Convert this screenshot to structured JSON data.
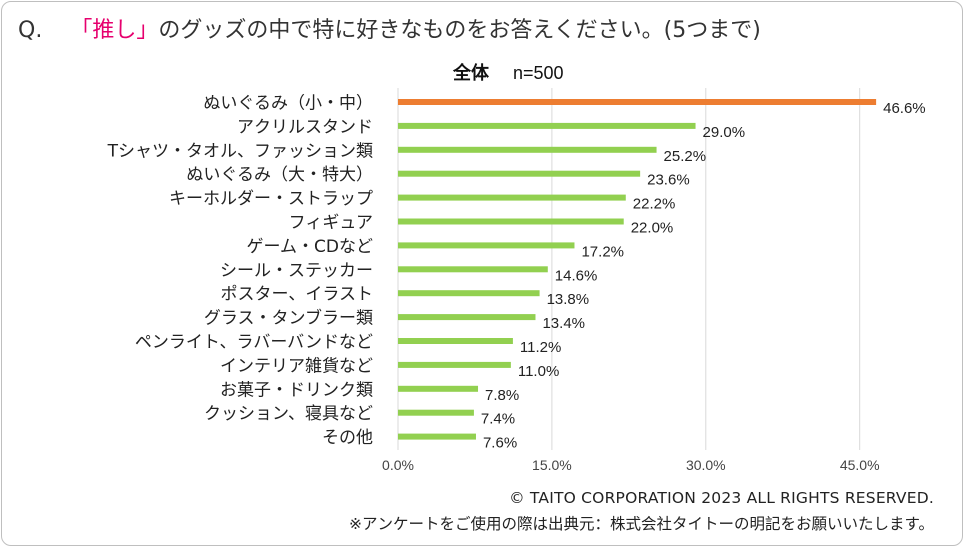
{
  "question": {
    "prefix": "Q.",
    "highlight": "「推し」",
    "text": "のグッズの中で特に好きなものをお答えください。(5つまで)"
  },
  "chart_data": {
    "type": "bar",
    "orientation": "horizontal",
    "title": "全体",
    "subtitle": "n=500",
    "categories": [
      "ぬいぐるみ（小・中）",
      "アクリルスタンド",
      "Tシャツ・タオル、ファッション類",
      "ぬいぐるみ（大・特大）",
      "キーホルダー・ストラップ",
      "フィギュア",
      "ゲーム・CDなど",
      "シール・ステッカー",
      "ポスター、イラスト",
      "グラス・タンブラー類",
      "ペンライト、ラバーバンドなど",
      "インテリア雑貨など",
      "お菓子・ドリンク類",
      "クッション、寝具など",
      "その他"
    ],
    "values": [
      46.6,
      29.0,
      25.2,
      23.6,
      22.2,
      22.0,
      17.2,
      14.6,
      13.8,
      13.4,
      11.2,
      11.0,
      7.8,
      7.4,
      7.6
    ],
    "value_labels": [
      "46.6%",
      "29.0%",
      "25.2%",
      "23.6%",
      "22.2%",
      "22.0%",
      "17.2%",
      "14.6%",
      "13.8%",
      "13.4%",
      "11.2%",
      "11.0%",
      "7.8%",
      "7.4%",
      "7.6%"
    ],
    "highlight_index": 0,
    "colors": {
      "highlight": "#ed7d31",
      "default": "#92d050",
      "grid": "#d9d9d9"
    },
    "xlim": [
      0,
      50
    ],
    "xticks": [
      0,
      15,
      30,
      45
    ],
    "xtick_labels": [
      "0.0%",
      "15.0%",
      "30.0%",
      "45.0%"
    ],
    "grid": true
  },
  "footer": {
    "copyright": "© TAITO CORPORATION 2023 ALL RIGHTS RESERVED.",
    "notice": "※アンケートをご使用の際は出典元：株式会社タイトーの明記をお願いいたします。"
  }
}
